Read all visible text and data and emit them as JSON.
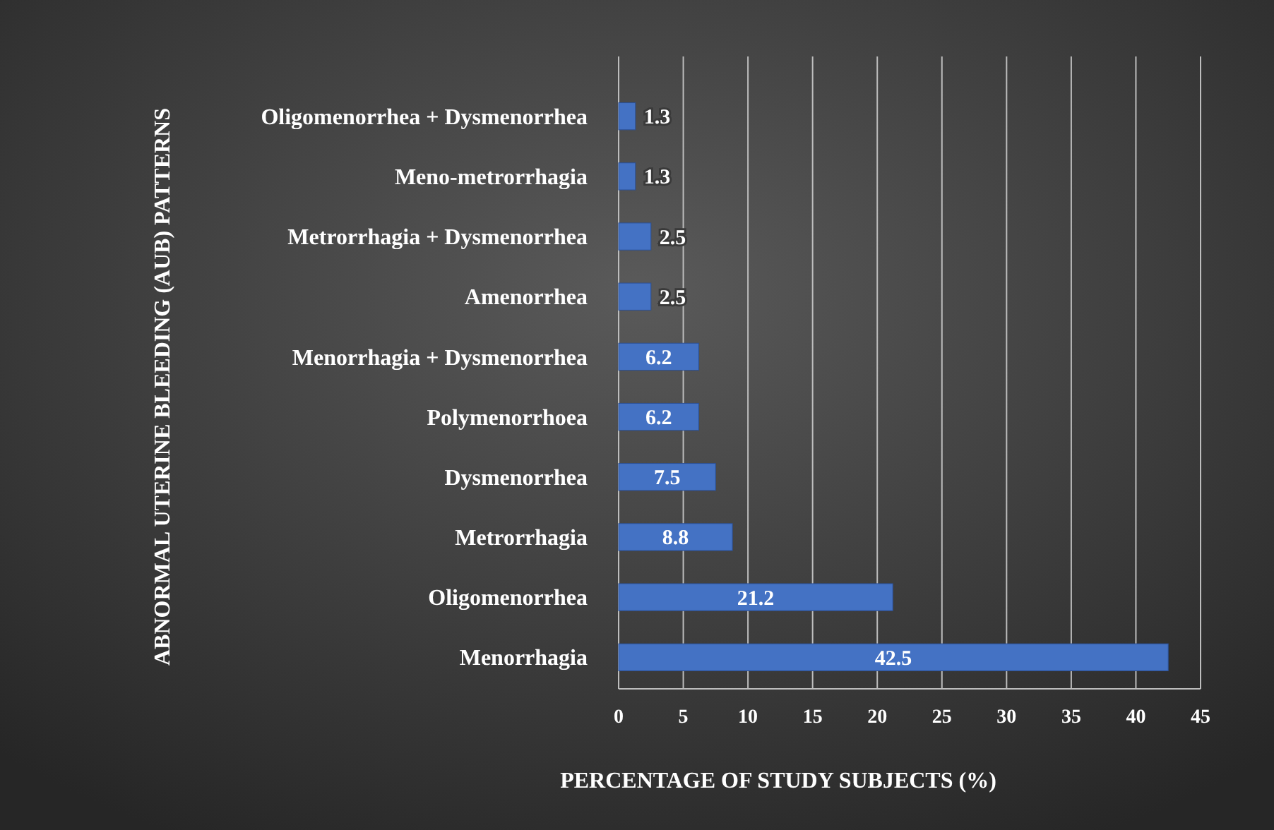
{
  "chart_data": {
    "type": "bar",
    "orientation": "horizontal",
    "ylabel": "ABNORMAL UTERINE BLEEDING (AUB) PATTERNS",
    "xlabel": "PERCENTAGE OF STUDY SUBJECTS (%)",
    "categories": [
      "Oligomenorrhea + Dysmenorrhea",
      "Meno-metrorrhagia",
      "Metrorrhagia + Dysmenorrhea",
      "Amenorrhea",
      "Menorrhagia + Dysmenorrhea",
      "Polymenorrhoea",
      "Dysmenorrhea",
      "Metrorrhagia",
      "Oligomenorrhea",
      "Menorrhagia"
    ],
    "values": [
      1.3,
      1.3,
      2.5,
      2.5,
      6.2,
      6.2,
      7.5,
      8.8,
      21.2,
      42.5
    ],
    "color": "#4472c4",
    "xlim": [
      0,
      45
    ],
    "xticks": [
      0,
      5,
      10,
      15,
      20,
      25,
      30,
      35,
      40,
      45
    ],
    "grid": "x",
    "data_labels": true
  }
}
